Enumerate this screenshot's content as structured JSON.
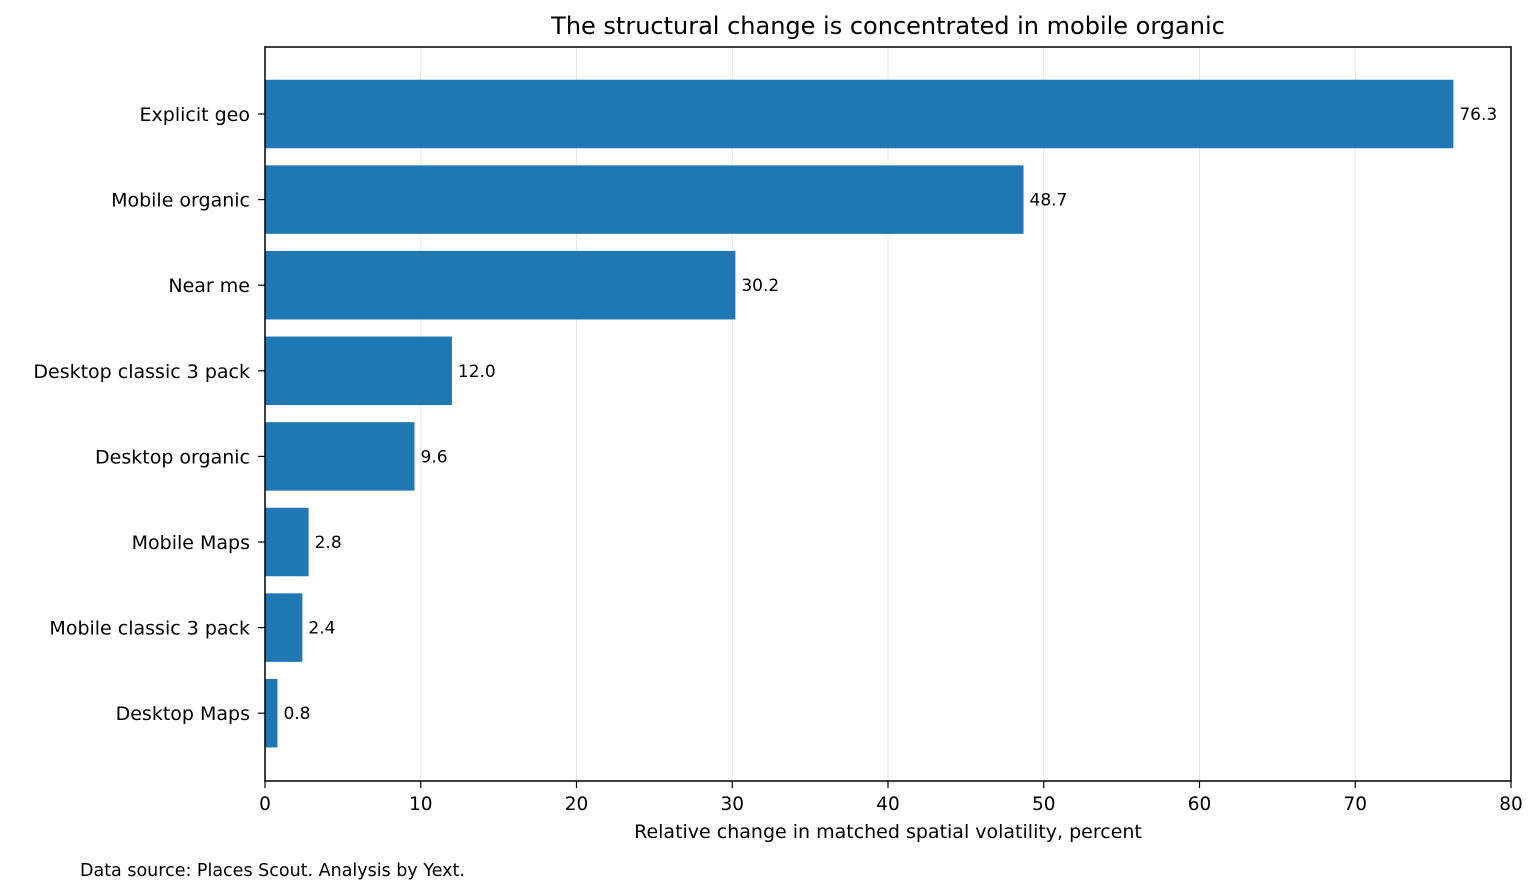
{
  "chart_data": {
    "type": "bar",
    "orientation": "horizontal",
    "title": "The structural change is concentrated in mobile organic",
    "xlabel": "Relative change in matched spatial volatility, percent",
    "ylabel": "",
    "categories": [
      "Explicit geo",
      "Mobile organic",
      "Near me",
      "Desktop classic 3 pack",
      "Desktop organic",
      "Mobile Maps",
      "Mobile classic 3 pack",
      "Desktop Maps"
    ],
    "values": [
      76.3,
      48.7,
      30.2,
      12.0,
      9.6,
      2.8,
      2.4,
      0.8
    ],
    "value_labels": [
      "76.3",
      "48.7",
      "30.2",
      "12.0",
      "9.6",
      "2.8",
      "2.4",
      "0.8"
    ],
    "xlim": [
      0,
      80
    ],
    "xticks": [
      0,
      10,
      20,
      30,
      40,
      50,
      60,
      70,
      80
    ],
    "xtick_labels": [
      "0",
      "10",
      "20",
      "30",
      "40",
      "50",
      "60",
      "70",
      "80"
    ],
    "grid": "vertical",
    "legend": "none",
    "colors": {
      "bar": "#1f77b4",
      "grid": "#e6e6e6",
      "axis": "#000000"
    }
  },
  "source_note": "Data source: Places Scout. Analysis by Yext."
}
